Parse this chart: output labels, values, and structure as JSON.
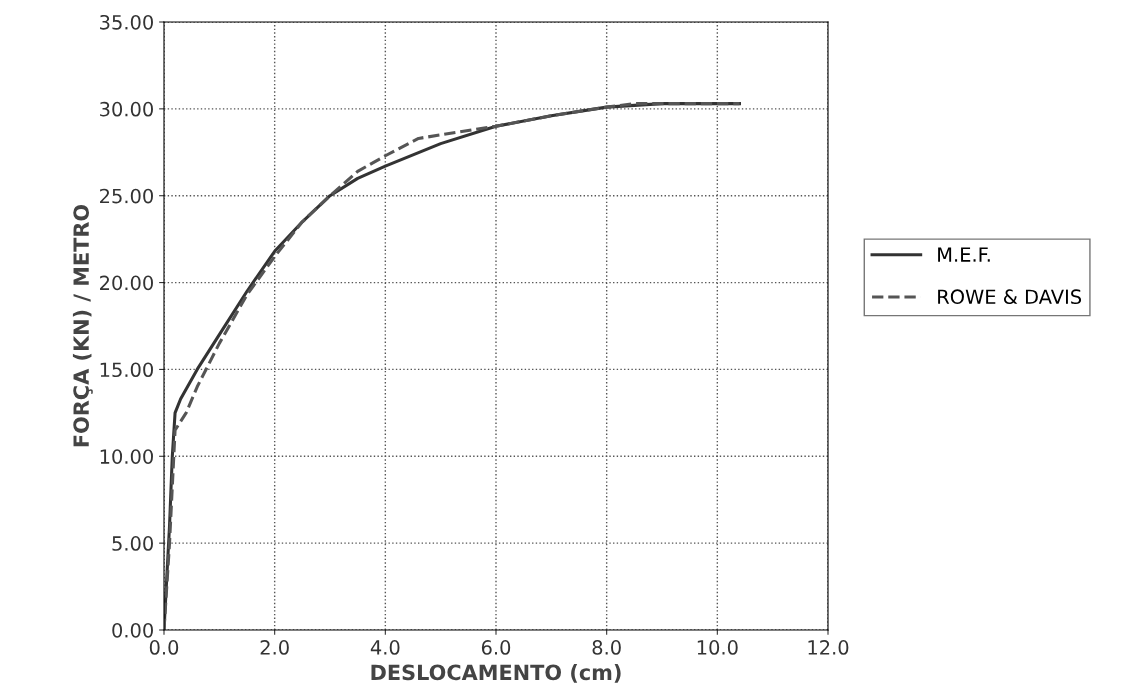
{
  "chart_data": {
    "type": "line",
    "xlabel": "DESLOCAMENTO (cm)",
    "ylabel": "FORÇA (KN) / METRO",
    "xlim": [
      0,
      12
    ],
    "ylim": [
      0,
      35
    ],
    "xticks": [
      {
        "value": 0,
        "label": "0.0"
      },
      {
        "value": 2,
        "label": "2.0"
      },
      {
        "value": 4,
        "label": "4.0"
      },
      {
        "value": 6,
        "label": "6.0"
      },
      {
        "value": 8,
        "label": "8.0"
      },
      {
        "value": 10,
        "label": "10.0"
      },
      {
        "value": 12,
        "label": "12.0"
      }
    ],
    "yticks": [
      {
        "value": 0,
        "label": "0.00"
      },
      {
        "value": 5,
        "label": "5.00"
      },
      {
        "value": 10,
        "label": "10.00"
      },
      {
        "value": 15,
        "label": "15.00"
      },
      {
        "value": 20,
        "label": "20.00"
      },
      {
        "value": 25,
        "label": "25.00"
      },
      {
        "value": 30,
        "label": "30.00"
      },
      {
        "value": 35,
        "label": "35.00"
      }
    ],
    "grid": true,
    "legend": "right",
    "series": [
      {
        "name": "M.E.F.",
        "color": "#333333",
        "line_style": "solid",
        "x": [
          0,
          0.05,
          0.1,
          0.15,
          0.2,
          0.3,
          0.6,
          1,
          1.5,
          2,
          2.5,
          3,
          3.5,
          4,
          5,
          6,
          7,
          8,
          9,
          10.4
        ],
        "values": [
          0,
          3,
          6,
          10,
          12.5,
          13.3,
          15,
          17,
          19.5,
          21.8,
          23.5,
          25,
          26,
          26.7,
          28,
          29,
          29.6,
          30.1,
          30.3,
          30.3
        ]
      },
      {
        "name": "ROWE & DAVIS",
        "color": "#555555",
        "line_style": "dashed",
        "x": [
          0,
          0.1,
          0.2,
          0.4,
          0.6,
          1,
          1.5,
          2,
          2.5,
          3,
          3.5,
          4,
          4.6,
          5,
          6,
          7,
          8,
          8.5,
          10.4
        ],
        "values": [
          0,
          5,
          11.5,
          12.5,
          14,
          16.5,
          19.3,
          21.5,
          23.5,
          25,
          26.4,
          27.3,
          28.3,
          28.5,
          29,
          29.6,
          30.1,
          30.3,
          30.3
        ]
      }
    ]
  }
}
